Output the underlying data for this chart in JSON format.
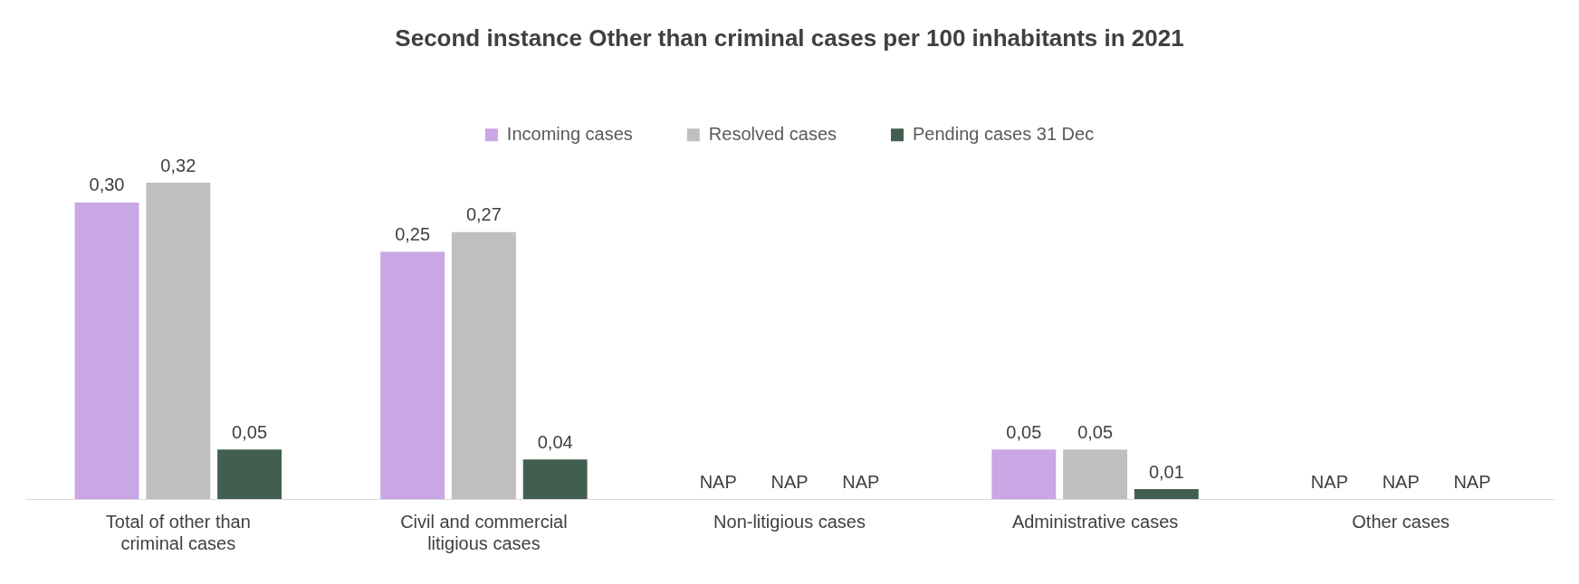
{
  "chart_data": {
    "type": "bar",
    "title": "Second instance Other than criminal cases per 100 inhabitants in 2021",
    "categories": [
      "Total of other than criminal cases",
      "Civil and commercial litigious cases",
      "Non-litigious cases",
      "Administrative cases",
      "Other cases"
    ],
    "series": [
      {
        "name": "Incoming cases",
        "color": "#c9a6e4",
        "values": [
          0.3,
          0.25,
          null,
          0.05,
          null
        ],
        "value_labels": [
          "0,30",
          "0,25",
          "NAP",
          "0,05",
          "NAP"
        ]
      },
      {
        "name": "Resolved cases",
        "color": "#bfbfbf",
        "values": [
          0.32,
          0.27,
          null,
          0.05,
          null
        ],
        "value_labels": [
          "0,32",
          "0,27",
          "NAP",
          "0,05",
          "NAP"
        ]
      },
      {
        "name": "Pending cases 31 Dec",
        "color": "#425e4f",
        "values": [
          0.05,
          0.04,
          null,
          0.01,
          null
        ],
        "value_labels": [
          "0,05",
          "0,04",
          "NAP",
          "0,01",
          "NAP"
        ]
      }
    ],
    "legend": "top",
    "grid": false
  }
}
